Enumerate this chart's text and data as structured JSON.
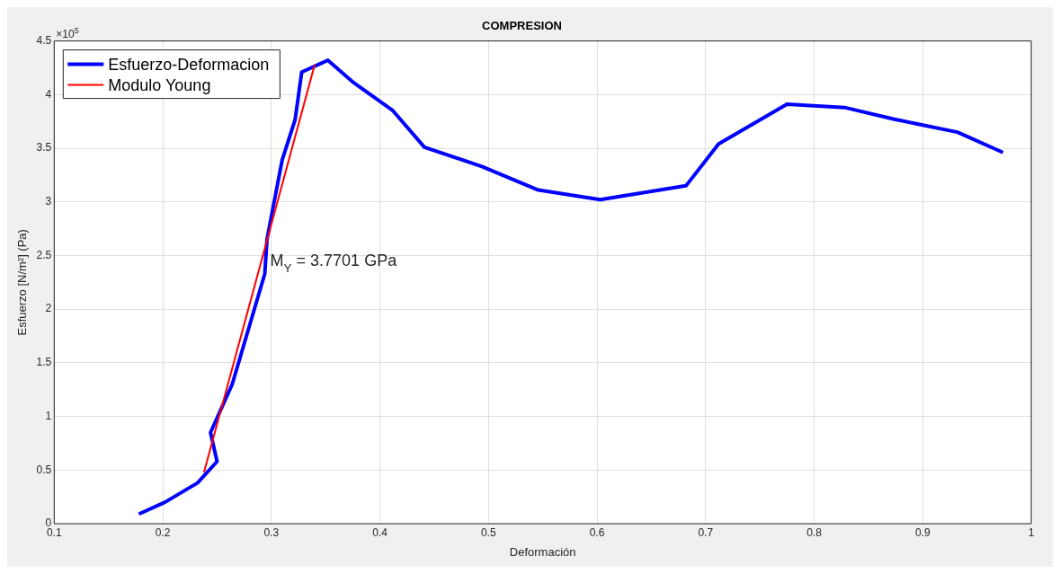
{
  "chart_data": {
    "type": "line",
    "title": "COMPRESION",
    "xlabel": "Deformación",
    "ylabel": "Esfuerzo [N/m²] (Pa)",
    "xlim": [
      0.1,
      1
    ],
    "xticks": [
      0.1,
      0.2,
      0.3,
      0.4,
      0.5,
      0.6,
      0.7,
      0.8,
      0.9,
      1
    ],
    "ylim": [
      0,
      4.5
    ],
    "yticks": [
      0,
      0.5,
      1,
      1.5,
      2,
      2.5,
      3,
      3.5,
      4,
      4.5
    ],
    "grid": true,
    "legend": "top left",
    "marker": "none",
    "line_style": "solid",
    "series": [
      {
        "name": "Esfuerzo-Deformacion",
        "color": "#0000ff",
        "x": [
          0.178,
          0.202,
          0.232,
          0.25,
          0.244,
          0.264,
          0.294,
          0.296,
          0.31,
          0.322,
          0.328,
          0.352,
          0.376,
          0.412,
          0.441,
          0.494,
          0.546,
          0.603,
          0.682,
          0.712,
          0.775,
          0.828,
          0.874,
          0.932,
          0.974
        ],
        "values": [
          0.09,
          0.2,
          0.38,
          0.58,
          0.85,
          1.3,
          2.33,
          2.65,
          3.39,
          3.77,
          4.21,
          4.32,
          4.11,
          3.85,
          3.51,
          3.33,
          3.11,
          3.02,
          3.15,
          3.54,
          3.91,
          3.88,
          3.77,
          3.65,
          3.46
        ]
      },
      {
        "name": "Modulo Young",
        "color": "#ff0000",
        "x": [
          0.238,
          0.34
        ],
        "values": [
          0.48,
          4.28
        ]
      }
    ],
    "annotations": [
      "×10$^{5}$",
      {
        "text": "M$_{Y}$ = 3.7701 GPa",
        "x": 0.299,
        "y": 2.4
      }
    ]
  }
}
